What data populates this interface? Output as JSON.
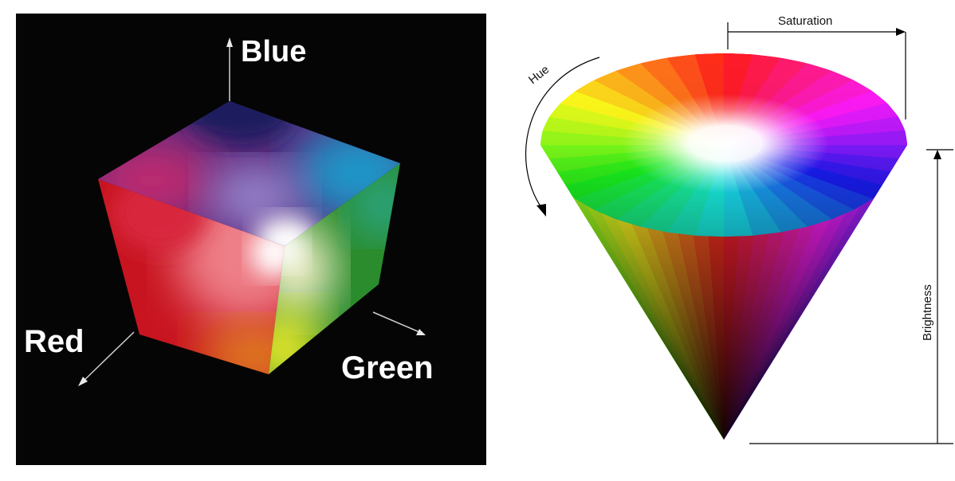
{
  "rgb_cube": {
    "axis_blue": "Blue",
    "axis_red": "Red",
    "axis_green": "Green"
  },
  "hsv_cone": {
    "label_saturation": "Saturation",
    "label_hue": "Hue",
    "label_brightness": "Brightness"
  }
}
